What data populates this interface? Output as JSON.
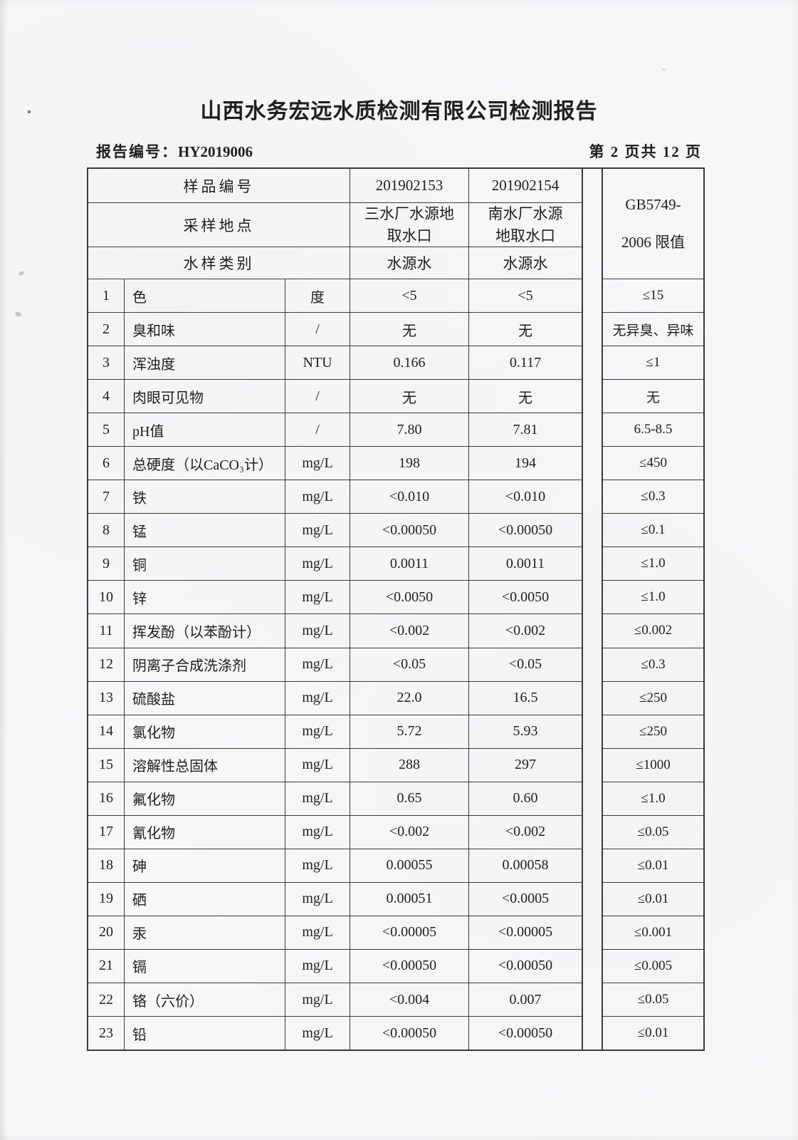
{
  "page": {
    "title": "山西水务宏远水质检测有限公司检测报告",
    "report_no_label": "报告编号：",
    "report_no": "HY2019006",
    "page_indicator": "第 2 页共 12 页"
  },
  "table": {
    "header": {
      "sample_id_label": "样品编号",
      "site_label": "采样地点",
      "type_label": "水样类别",
      "sample1_id": "201902153",
      "sample2_id": "201902154",
      "sample1_site": "三水厂水源地\n取水口",
      "sample2_site": "南水厂水源\n地取水口",
      "sample1_type": "水源水",
      "sample2_type": "水源水",
      "limit_line1": "GB5749-",
      "limit_line2": "2006 限值"
    },
    "rows": [
      {
        "no": "1",
        "param": "色",
        "unit": "度",
        "s1": "<5",
        "s2": "<5",
        "limit": "≤15"
      },
      {
        "no": "2",
        "param": "臭和味",
        "unit": "/",
        "s1": "无",
        "s2": "无",
        "limit": "无异臭、异味"
      },
      {
        "no": "3",
        "param": "浑浊度",
        "unit": "NTU",
        "s1": "0.166",
        "s2": "0.117",
        "limit": "≤1"
      },
      {
        "no": "4",
        "param": "肉眼可见物",
        "unit": "/",
        "s1": "无",
        "s2": "无",
        "limit": "无"
      },
      {
        "no": "5",
        "param": "pH值",
        "unit": "/",
        "s1": "7.80",
        "s2": "7.81",
        "limit": "6.5-8.5"
      },
      {
        "no": "6",
        "param": "总硬度（以CaCO₃计）",
        "unit": "mg/L",
        "s1": "198",
        "s2": "194",
        "limit": "≤450"
      },
      {
        "no": "7",
        "param": "铁",
        "unit": "mg/L",
        "s1": "<0.010",
        "s2": "<0.010",
        "limit": "≤0.3"
      },
      {
        "no": "8",
        "param": "锰",
        "unit": "mg/L",
        "s1": "<0.00050",
        "s2": "<0.00050",
        "limit": "≤0.1"
      },
      {
        "no": "9",
        "param": "铜",
        "unit": "mg/L",
        "s1": "0.0011",
        "s2": "0.0011",
        "limit": "≤1.0"
      },
      {
        "no": "10",
        "param": "锌",
        "unit": "mg/L",
        "s1": "<0.0050",
        "s2": "<0.0050",
        "limit": "≤1.0"
      },
      {
        "no": "11",
        "param": "挥发酚（以苯酚计）",
        "unit": "mg/L",
        "s1": "<0.002",
        "s2": "<0.002",
        "limit": "≤0.002"
      },
      {
        "no": "12",
        "param": "阴离子合成洗涤剂",
        "unit": "mg/L",
        "s1": "<0.05",
        "s2": "<0.05",
        "limit": "≤0.3"
      },
      {
        "no": "13",
        "param": "硫酸盐",
        "unit": "mg/L",
        "s1": "22.0",
        "s2": "16.5",
        "limit": "≤250"
      },
      {
        "no": "14",
        "param": "氯化物",
        "unit": "mg/L",
        "s1": "5.72",
        "s2": "5.93",
        "limit": "≤250"
      },
      {
        "no": "15",
        "param": "溶解性总固体",
        "unit": "mg/L",
        "s1": "288",
        "s2": "297",
        "limit": "≤1000"
      },
      {
        "no": "16",
        "param": "氟化物",
        "unit": "mg/L",
        "s1": "0.65",
        "s2": "0.60",
        "limit": "≤1.0"
      },
      {
        "no": "17",
        "param": "氰化物",
        "unit": "mg/L",
        "s1": "<0.002",
        "s2": "<0.002",
        "limit": "≤0.05"
      },
      {
        "no": "18",
        "param": "砷",
        "unit": "mg/L",
        "s1": "0.00055",
        "s2": "0.00058",
        "limit": "≤0.01"
      },
      {
        "no": "19",
        "param": "硒",
        "unit": "mg/L",
        "s1": "0.00051",
        "s2": "<0.0005",
        "limit": "≤0.01"
      },
      {
        "no": "20",
        "param": "汞",
        "unit": "mg/L",
        "s1": "<0.00005",
        "s2": "<0.00005",
        "limit": "≤0.001"
      },
      {
        "no": "21",
        "param": "镉",
        "unit": "mg/L",
        "s1": "<0.00050",
        "s2": "<0.00050",
        "limit": "≤0.005"
      },
      {
        "no": "22",
        "param": "铬（六价）",
        "unit": "mg/L",
        "s1": "<0.004",
        "s2": "0.007",
        "limit": "≤0.05"
      },
      {
        "no": "23",
        "param": "铅",
        "unit": "mg/L",
        "s1": "<0.00050",
        "s2": "<0.00050",
        "limit": "≤0.01"
      }
    ]
  }
}
